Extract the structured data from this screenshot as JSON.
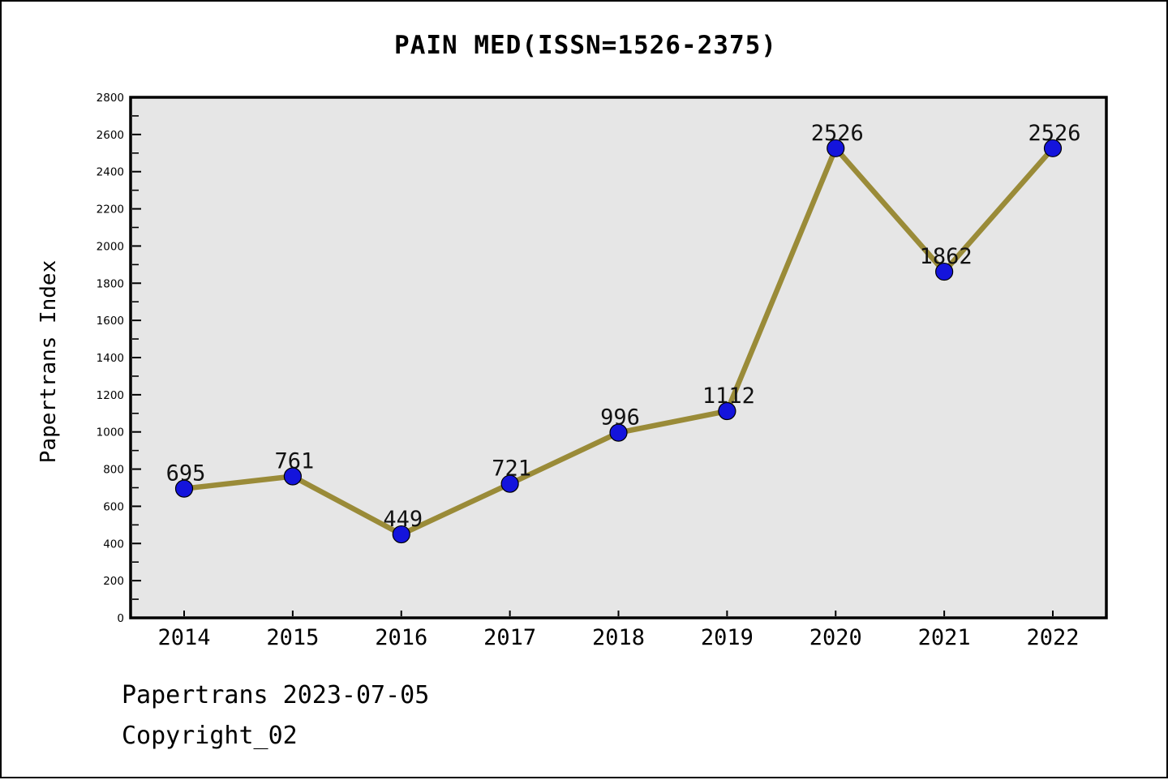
{
  "chart_data": {
    "type": "line",
    "title": "PAIN MED(ISSN=1526-2375)",
    "ylabel": "Papertrans Index",
    "xlabel": "",
    "categories": [
      "2014",
      "2015",
      "2016",
      "2017",
      "2018",
      "2019",
      "2020",
      "2021",
      "2022"
    ],
    "series": [
      {
        "name": "Papertrans Index",
        "values": [
          695,
          761,
          449,
          721,
          996,
          1112,
          2526,
          1862,
          2526
        ]
      }
    ],
    "data_labels": [
      695,
      761,
      449,
      721,
      996,
      1112,
      2526,
      1862,
      2526
    ],
    "ylim": [
      0,
      2800
    ],
    "ytick_step": 200,
    "yminor_step": 100,
    "yticks": [
      0,
      200,
      400,
      600,
      800,
      1000,
      1200,
      1400,
      1600,
      1800,
      2000,
      2200,
      2400,
      2600,
      2800
    ],
    "grid": false,
    "legend_position": "none",
    "colors": {
      "line": "#9A8B38",
      "marker_fill": "#1414DC",
      "marker_edge": "#000000",
      "plot_background": "#E6E6E6",
      "frame": "#000000",
      "text": "#000000"
    }
  },
  "footer": {
    "line1": "Papertrans 2023-07-05",
    "line2": "Copyright_02"
  }
}
